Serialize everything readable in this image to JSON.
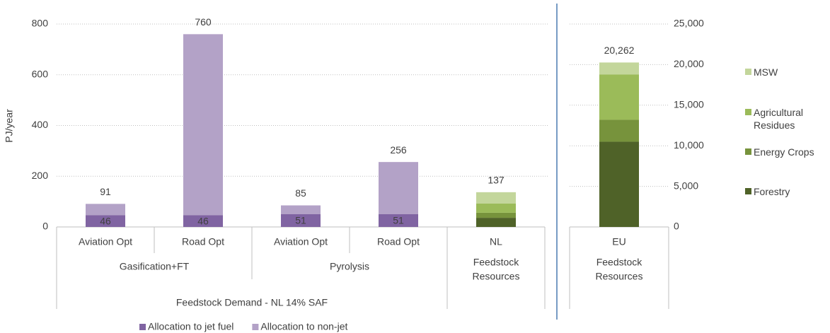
{
  "chart_data": [
    {
      "type": "bar",
      "stacked": true,
      "ylabel": "PJ/year",
      "categories": [
        "Aviation Opt",
        "Road Opt",
        "Aviation Opt",
        "Road Opt",
        "NL"
      ],
      "groups": [
        {
          "label": [
            "Gasification+FT"
          ],
          "span": 2
        },
        {
          "label": [
            "Pyrolysis"
          ],
          "span": 2
        },
        {
          "label": [
            "Feedstock",
            "Resources"
          ],
          "span": 1
        }
      ],
      "supergroups": [
        {
          "label": [
            "Feedstock Demand - NL 14% SAF"
          ],
          "span": 4
        }
      ],
      "ylim": [
        0,
        800
      ],
      "yticks": [
        0,
        200,
        400,
        600,
        800
      ],
      "grid": true,
      "legend": "bottom",
      "totals": [
        91,
        760,
        85,
        256,
        137
      ],
      "series": [
        {
          "name": "Allocation to jet fuel",
          "color": "#8064a2",
          "data_labels": true,
          "values": [
            46,
            46,
            51,
            51,
            null
          ]
        },
        {
          "name": "Allocation to non-jet",
          "color": "#b3a2c7",
          "values": [
            45,
            714,
            34,
            205,
            null
          ]
        },
        {
          "color": "#4f6228",
          "values": [
            null,
            null,
            null,
            null,
            36
          ]
        },
        {
          "color": "#77933c",
          "values": [
            null,
            null,
            null,
            null,
            20
          ]
        },
        {
          "color": "#9bbb59",
          "values": [
            null,
            null,
            null,
            null,
            36
          ]
        },
        {
          "color": "#c3d69b",
          "values": [
            null,
            null,
            null,
            null,
            45
          ]
        }
      ]
    },
    {
      "type": "bar",
      "stacked": true,
      "categories": [
        "EU"
      ],
      "groups": [
        {
          "label": [
            "Feedstock",
            "Resources"
          ],
          "span": 1
        }
      ],
      "ylim": [
        0,
        25000
      ],
      "yticks": [
        0,
        {
          "value": 5000,
          "label": "5,000"
        },
        {
          "value": 10000,
          "label": "10,000"
        },
        {
          "value": 15000,
          "label": "15,000"
        },
        {
          "value": 20000,
          "label": "20,000"
        },
        {
          "value": 25000,
          "label": "25,000"
        }
      ],
      "grid": true,
      "legend": "right",
      "totals": [
        {
          "value": 20262,
          "label": "20,262"
        }
      ],
      "series": [
        {
          "name": "Forestry",
          "color": "#4f6228",
          "values": [
            10500
          ]
        },
        {
          "name": "Energy Crops",
          "color": "#77933c",
          "values": [
            2700
          ]
        },
        {
          "name": "Agricultural Residues",
          "color": "#9bbb59",
          "values": [
            5600
          ]
        },
        {
          "name": "MSW",
          "color": "#c3d69b",
          "values": [
            1462
          ]
        }
      ]
    }
  ]
}
